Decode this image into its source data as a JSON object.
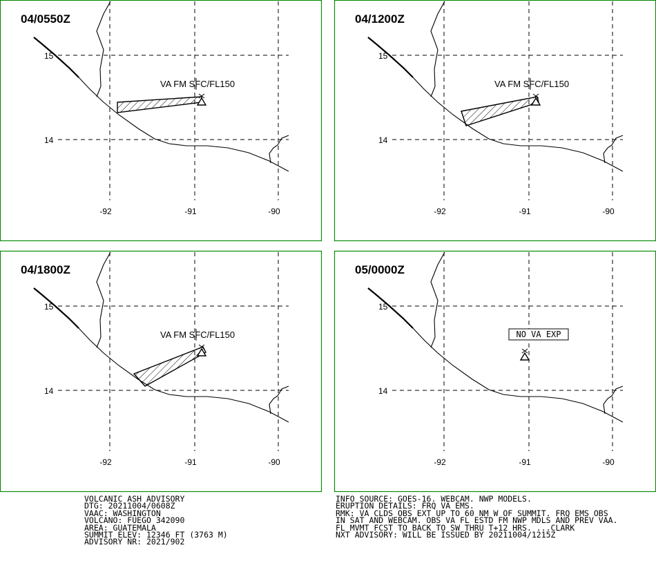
{
  "panels": [
    {
      "time_label": "04/0550Z",
      "ash_label": "VA FM SFC/FL150",
      "no_va": false
    },
    {
      "time_label": "04/1200Z",
      "ash_label": "VA FM SFC/FL150",
      "no_va": false
    },
    {
      "time_label": "04/1800Z",
      "ash_label": "VA FM SFC/FL150",
      "no_va": false
    },
    {
      "time_label": "05/0000Z",
      "ash_label": "NO VA EXP",
      "no_va": true
    }
  ],
  "grid": {
    "lat_labels": [
      "15",
      "14"
    ],
    "lon_labels": [
      "-92",
      "-91",
      "-90"
    ]
  },
  "map_colors": {
    "border": "#0a8a0a",
    "ink": "#000000"
  },
  "advisory_left": [
    "VOLCANIC ASH ADVISORY",
    "DTG: 20211004/0608Z",
    "VAAC: WASHINGTON",
    "VOLCANO: FUEGO 342090",
    "AREA: GUATEMALA",
    "SUMMIT ELEV: 12346 FT (3763 M)",
    "ADVISORY NR: 2021/902"
  ],
  "advisory_right": [
    "INFO SOURCE: GOES-16. WEBCAM. NWP MODELS.",
    "ERUPTION DETAILS: FRQ VA EMS.",
    "RMK: VA CLDS OBS EXT UP TO 60 NM W OF SUMMIT. FRQ EMS OBS",
    "IN SAT AND WEBCAM. OBS VA FL ESTD FM NWP MDLS AND PREV VAA.",
    "FL MVMT FCST TO BACK TO SW THRU T+12 HRS. ...CLARK",
    "NXT ADVISORY: WILL BE ISSUED BY 20211004/1215Z"
  ]
}
